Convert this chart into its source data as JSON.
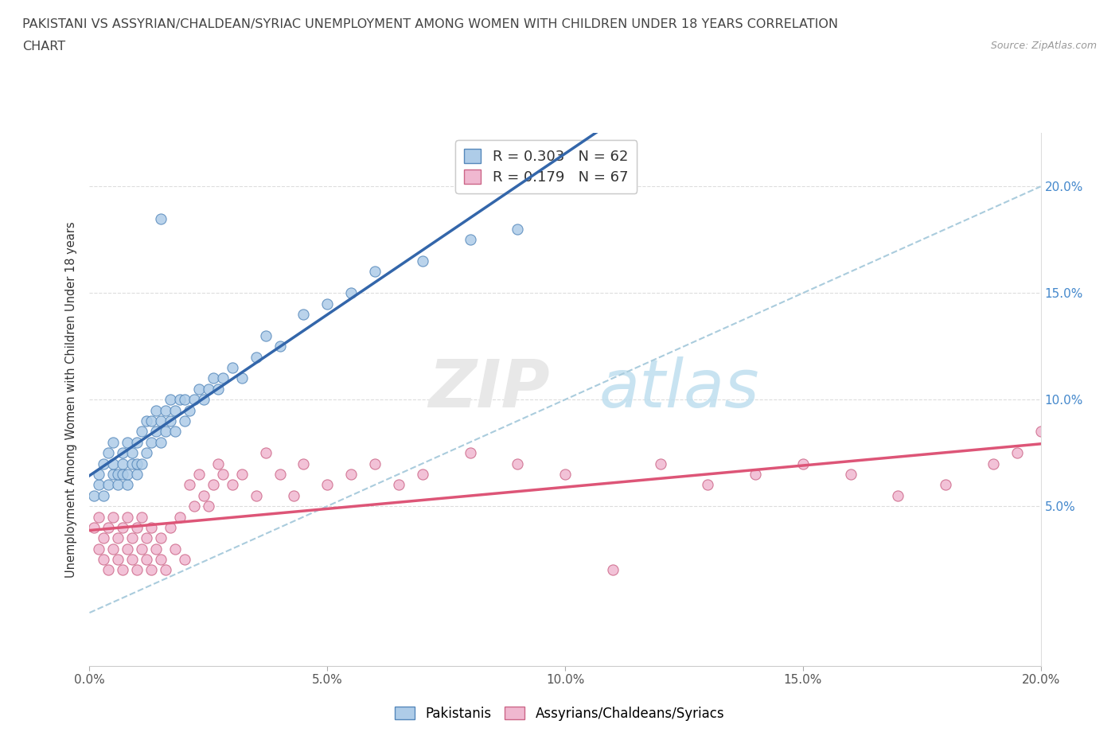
{
  "title_line1": "PAKISTANI VS ASSYRIAN/CHALDEAN/SYRIAC UNEMPLOYMENT AMONG WOMEN WITH CHILDREN UNDER 18 YEARS CORRELATION",
  "title_line2": "CHART",
  "source": "Source: ZipAtlas.com",
  "ylabel": "Unemployment Among Women with Children Under 18 years",
  "xlim": [
    0.0,
    0.2
  ],
  "ylim": [
    -0.025,
    0.225
  ],
  "xticks": [
    0.0,
    0.05,
    0.1,
    0.15,
    0.2
  ],
  "xticklabels": [
    "0.0%",
    "5.0%",
    "10.0%",
    "15.0%",
    "20.0%"
  ],
  "yticks": [
    0.05,
    0.1,
    0.15,
    0.2
  ],
  "yticklabels": [
    "5.0%",
    "10.0%",
    "15.0%",
    "20.0%"
  ],
  "r_pakistani": 0.303,
  "n_pakistani": 62,
  "r_assyrian": 0.179,
  "n_assyrian": 67,
  "pakistani_color": "#aecce8",
  "assyrian_color": "#f0b8d0",
  "pakistani_edge": "#5588bb",
  "assyrian_edge": "#cc6688",
  "trend_pakistani_color": "#3366aa",
  "trend_assyrian_color": "#dd5577",
  "trend_dashed_color": "#aaccdd",
  "pakistani_x": [
    0.001,
    0.002,
    0.002,
    0.003,
    0.003,
    0.004,
    0.004,
    0.005,
    0.005,
    0.005,
    0.006,
    0.006,
    0.007,
    0.007,
    0.007,
    0.008,
    0.008,
    0.008,
    0.009,
    0.009,
    0.01,
    0.01,
    0.01,
    0.011,
    0.011,
    0.012,
    0.012,
    0.013,
    0.013,
    0.014,
    0.014,
    0.015,
    0.015,
    0.016,
    0.016,
    0.017,
    0.017,
    0.018,
    0.018,
    0.019,
    0.02,
    0.02,
    0.021,
    0.022,
    0.023,
    0.024,
    0.025,
    0.026,
    0.027,
    0.028,
    0.03,
    0.032,
    0.035,
    0.037,
    0.04,
    0.045,
    0.05,
    0.055,
    0.06,
    0.07,
    0.08,
    0.09
  ],
  "pakistani_y": [
    0.055,
    0.06,
    0.065,
    0.055,
    0.07,
    0.06,
    0.075,
    0.065,
    0.07,
    0.08,
    0.06,
    0.065,
    0.065,
    0.07,
    0.075,
    0.06,
    0.065,
    0.08,
    0.07,
    0.075,
    0.065,
    0.07,
    0.08,
    0.07,
    0.085,
    0.075,
    0.09,
    0.08,
    0.09,
    0.085,
    0.095,
    0.08,
    0.09,
    0.085,
    0.095,
    0.09,
    0.1,
    0.085,
    0.095,
    0.1,
    0.09,
    0.1,
    0.095,
    0.1,
    0.105,
    0.1,
    0.105,
    0.11,
    0.105,
    0.11,
    0.115,
    0.11,
    0.12,
    0.13,
    0.125,
    0.14,
    0.145,
    0.15,
    0.16,
    0.165,
    0.175,
    0.18
  ],
  "pakistani_outlier_x": [
    0.015
  ],
  "pakistani_outlier_y": [
    0.185
  ],
  "assyrian_x": [
    0.001,
    0.002,
    0.002,
    0.003,
    0.003,
    0.004,
    0.004,
    0.005,
    0.005,
    0.006,
    0.006,
    0.007,
    0.007,
    0.008,
    0.008,
    0.009,
    0.009,
    0.01,
    0.01,
    0.011,
    0.011,
    0.012,
    0.012,
    0.013,
    0.013,
    0.014,
    0.015,
    0.015,
    0.016,
    0.017,
    0.018,
    0.019,
    0.02,
    0.021,
    0.022,
    0.023,
    0.024,
    0.025,
    0.026,
    0.027,
    0.028,
    0.03,
    0.032,
    0.035,
    0.037,
    0.04,
    0.043,
    0.045,
    0.05,
    0.055,
    0.06,
    0.065,
    0.07,
    0.08,
    0.09,
    0.1,
    0.11,
    0.12,
    0.13,
    0.14,
    0.15,
    0.16,
    0.17,
    0.18,
    0.19,
    0.195,
    0.2
  ],
  "assyrian_y": [
    0.04,
    0.03,
    0.045,
    0.025,
    0.035,
    0.02,
    0.04,
    0.03,
    0.045,
    0.025,
    0.035,
    0.02,
    0.04,
    0.03,
    0.045,
    0.025,
    0.035,
    0.02,
    0.04,
    0.03,
    0.045,
    0.025,
    0.035,
    0.02,
    0.04,
    0.03,
    0.025,
    0.035,
    0.02,
    0.04,
    0.03,
    0.045,
    0.025,
    0.06,
    0.05,
    0.065,
    0.055,
    0.05,
    0.06,
    0.07,
    0.065,
    0.06,
    0.065,
    0.055,
    0.075,
    0.065,
    0.055,
    0.07,
    0.06,
    0.065,
    0.07,
    0.06,
    0.065,
    0.075,
    0.07,
    0.065,
    0.02,
    0.07,
    0.06,
    0.065,
    0.07,
    0.065,
    0.055,
    0.06,
    0.07,
    0.075,
    0.085
  ]
}
